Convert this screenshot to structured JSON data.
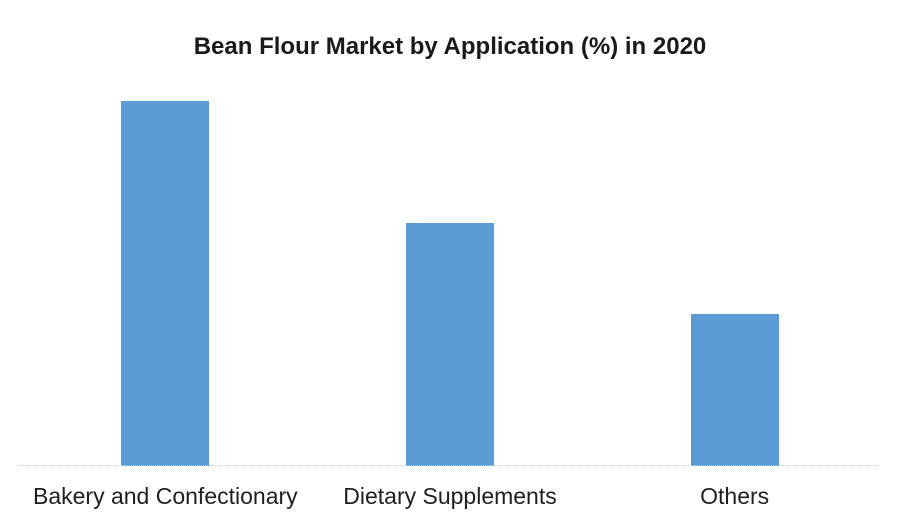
{
  "colors": {
    "bar": "#5B9BD5",
    "axis_line": "#C9C9C9",
    "title_text": "#1A1A1A",
    "label_text": "#1F1F1F",
    "background": "#FFFFFF"
  },
  "chart_data": {
    "type": "bar",
    "title": "Bean Flour Market by Application (%) in 2020",
    "categories": [
      "Bakery and Confectionary",
      "Dietary Supplements",
      "Others"
    ],
    "values": [
      48,
      32,
      20
    ],
    "unit": "%",
    "xlabel": "",
    "ylabel": "",
    "ylim": [
      0,
      50
    ],
    "grid": false,
    "legend": false,
    "bar_color": "#5B9BD5",
    "baseline_style": "dotted"
  }
}
